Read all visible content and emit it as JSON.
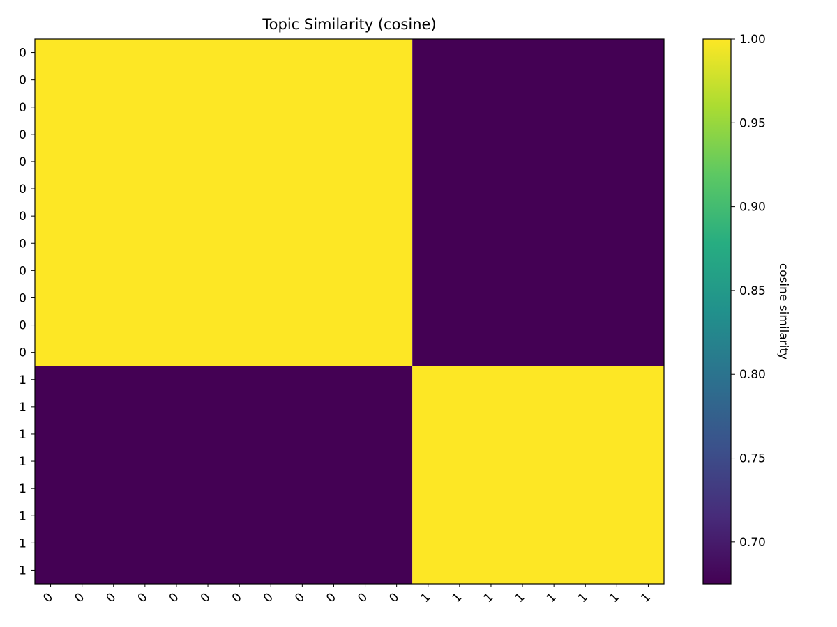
{
  "chart_data": {
    "type": "heatmap",
    "title": "Topic Similarity (cosine)",
    "row_labels": [
      "0",
      "0",
      "0",
      "0",
      "0",
      "0",
      "0",
      "0",
      "0",
      "0",
      "0",
      "0",
      "1",
      "1",
      "1",
      "1",
      "1",
      "1",
      "1",
      "1"
    ],
    "col_labels": [
      "0",
      "0",
      "0",
      "0",
      "0",
      "0",
      "0",
      "0",
      "0",
      "0",
      "0",
      "0",
      "1",
      "1",
      "1",
      "1",
      "1",
      "1",
      "1",
      "1"
    ],
    "blocks": [
      {
        "rows": [
          0,
          11
        ],
        "cols": [
          0,
          11
        ],
        "value": 1.0
      },
      {
        "rows": [
          0,
          11
        ],
        "cols": [
          12,
          19
        ],
        "value": 0.675
      },
      {
        "rows": [
          12,
          19
        ],
        "cols": [
          0,
          11
        ],
        "value": 0.675
      },
      {
        "rows": [
          12,
          19
        ],
        "cols": [
          12,
          19
        ],
        "value": 1.0
      }
    ],
    "colorbar": {
      "label": "cosine similarity",
      "vmin": 0.675,
      "vmax": 1.0,
      "ticks": [
        "0.70",
        "0.75",
        "0.80",
        "0.85",
        "0.90",
        "0.95",
        "1.00"
      ],
      "colormap": "viridis"
    },
    "colors": {
      "high": "#fde725",
      "low": "#440154"
    }
  }
}
